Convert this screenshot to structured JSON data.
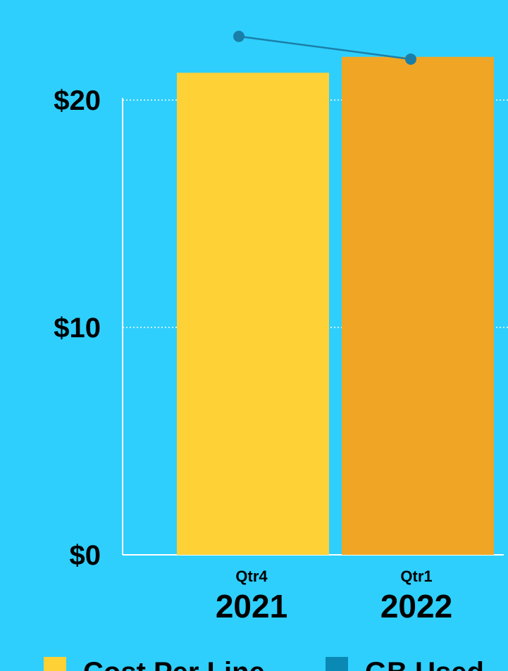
{
  "chart_data": {
    "type": "bar",
    "categories": [
      [
        "Qtr4",
        "2021"
      ],
      [
        "Qtr1",
        "2022"
      ]
    ],
    "series": [
      {
        "name": "Cost Per Line",
        "colors": [
          "#fed136",
          "#f0a624"
        ],
        "color": "#fed136",
        "values": [
          21.2,
          21.9
        ]
      },
      {
        "name": "GB Used",
        "type": "line",
        "color": "#0a89b5",
        "values": [
          22.8,
          21.8
        ]
      }
    ],
    "ylim": [
      0,
      24.4
    ],
    "yticks": [
      {
        "value": 0,
        "label": "$0"
      },
      {
        "value": 10,
        "label": "$10"
      },
      {
        "value": 20,
        "label": "$20"
      }
    ],
    "grid": true
  }
}
